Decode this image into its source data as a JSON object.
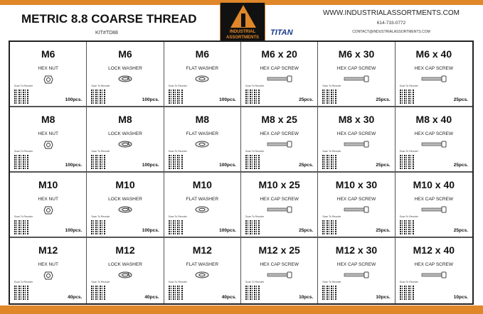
{
  "header": {
    "title": "METRIC 8.8 COARSE THREAD",
    "kit": "KIT#TD88",
    "logo_text": "INDUSTRIAL ASSORTMENTS",
    "brand2": "TITAN",
    "website": "WWW.INDUSTRIALASSORTMENTS.COM",
    "phone": "614-733-0772",
    "email": "CONTACT@INDUSTRIALASSORTMENTS.COM"
  },
  "colors": {
    "accent": "#e0872a"
  },
  "scan_label": "Scan To Reorder",
  "rows": [
    [
      {
        "size": "M6",
        "type": "HEX NUT",
        "qty": "100pcs.",
        "icon": "nut"
      },
      {
        "size": "M6",
        "type": "LOCK WASHER",
        "qty": "100pcs.",
        "icon": "lock-washer"
      },
      {
        "size": "M6",
        "type": "FLAT WASHER",
        "qty": "100pcs.",
        "icon": "flat-washer"
      },
      {
        "size": "M6 x 20",
        "type": "HEX CAP SCREW",
        "qty": "25pcs.",
        "icon": "screw"
      },
      {
        "size": "M6 x 30",
        "type": "HEX CAP SCREW",
        "qty": "25pcs.",
        "icon": "screw"
      },
      {
        "size": "M6 x 40",
        "type": "HEX CAP SCREW",
        "qty": "25pcs.",
        "icon": "screw"
      }
    ],
    [
      {
        "size": "M8",
        "type": "HEX NUT",
        "qty": "100pcs.",
        "icon": "nut"
      },
      {
        "size": "M8",
        "type": "LOCK WASHER",
        "qty": "100pcs.",
        "icon": "lock-washer"
      },
      {
        "size": "M8",
        "type": "FLAT WASHER",
        "qty": "100pcs.",
        "icon": "flat-washer"
      },
      {
        "size": "M8 x 25",
        "type": "HEX CAP SCREW",
        "qty": "25pcs.",
        "icon": "screw"
      },
      {
        "size": "M8 x 30",
        "type": "HEX CAP SCREW",
        "qty": "25pcs.",
        "icon": "screw"
      },
      {
        "size": "M8 x 40",
        "type": "HEX CAP SCREW",
        "qty": "25pcs.",
        "icon": "screw"
      }
    ],
    [
      {
        "size": "M10",
        "type": "HEX NUT",
        "qty": "100pcs.",
        "icon": "nut"
      },
      {
        "size": "M10",
        "type": "LOCK WASHER",
        "qty": "100pcs.",
        "icon": "lock-washer"
      },
      {
        "size": "M10",
        "type": "FLAT WASHER",
        "qty": "100pcs.",
        "icon": "flat-washer"
      },
      {
        "size": "M10 x 25",
        "type": "HEX CAP SCREW",
        "qty": "25pcs.",
        "icon": "screw"
      },
      {
        "size": "M10 x 30",
        "type": "HEX CAP SCREW",
        "qty": "25pcs.",
        "icon": "screw"
      },
      {
        "size": "M10 x 40",
        "type": "HEX CAP SCREW",
        "qty": "25pcs.",
        "icon": "screw"
      }
    ],
    [
      {
        "size": "M12",
        "type": "HEX NUT",
        "qty": "40pcs.",
        "icon": "nut"
      },
      {
        "size": "M12",
        "type": "LOCK WASHER",
        "qty": "40pcs.",
        "icon": "lock-washer"
      },
      {
        "size": "M12",
        "type": "FLAT WASHER",
        "qty": "40pcs.",
        "icon": "flat-washer"
      },
      {
        "size": "M12 x 25",
        "type": "HEX CAP SCREW",
        "qty": "10pcs.",
        "icon": "screw"
      },
      {
        "size": "M12 x 30",
        "type": "HEX CAP SCREW",
        "qty": "10pcs.",
        "icon": "screw"
      },
      {
        "size": "M12 x 40",
        "type": "HEX CAP SCREW",
        "qty": "10pcs.",
        "icon": "screw"
      }
    ]
  ]
}
